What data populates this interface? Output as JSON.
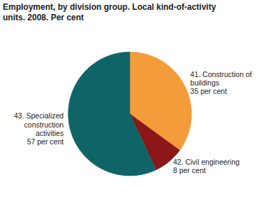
{
  "chart_data": {
    "type": "pie",
    "title": "Employment, by division group. Local kind-of-activity units. 2008. Per cent",
    "categories": [
      "41. Construction of buildings",
      "42. Civil engineering",
      "43. Specialized construction activities"
    ],
    "values": [
      35,
      8,
      57
    ],
    "value_labels": [
      "35 per cent",
      "8 per cent",
      "57 per cent"
    ],
    "colors": [
      "#f39c3a",
      "#8c1718",
      "#0e6467"
    ],
    "data_labels": true
  }
}
